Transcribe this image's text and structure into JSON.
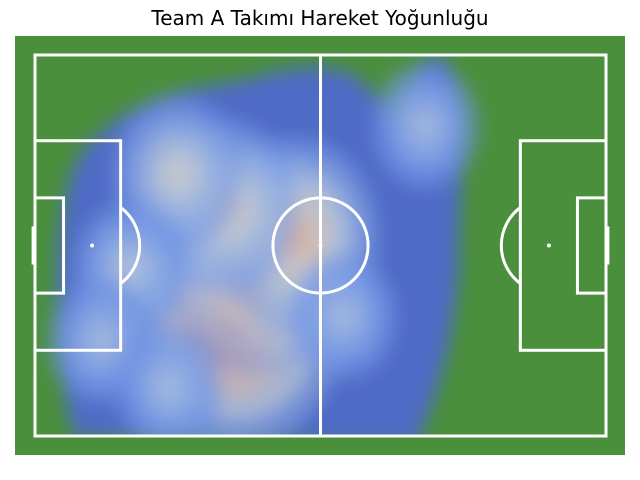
{
  "chart_data": {
    "type": "heatmap",
    "title": "Team A Takımı Hareket Yoğunluğu",
    "xlabel": "",
    "ylabel": "",
    "xlim": [
      0,
      120
    ],
    "ylim": [
      0,
      80
    ],
    "grid": false,
    "colormap": "coolwarm",
    "density_hotspots": [
      {
        "x": 42,
        "y": 55,
        "intensity": 1.0
      },
      {
        "x": 47,
        "y": 44,
        "intensity": 0.8
      },
      {
        "x": 55,
        "y": 38,
        "intensity": 0.65
      },
      {
        "x": 40,
        "y": 32,
        "intensity": 0.55
      },
      {
        "x": 30,
        "y": 25,
        "intensity": 0.45
      },
      {
        "x": 20,
        "y": 45,
        "intensity": 0.35
      },
      {
        "x": 14,
        "y": 60,
        "intensity": 0.3
      },
      {
        "x": 82,
        "y": 15,
        "intensity": 0.3
      },
      {
        "x": 28,
        "y": 70,
        "intensity": 0.3
      },
      {
        "x": 65,
        "y": 55,
        "intensity": 0.3
      }
    ]
  },
  "colors": {
    "grass": "#4a8f3c",
    "lines": "#ffffff",
    "low": "#3b4cc0",
    "mid": "#dddcdc",
    "high": "#b40426"
  }
}
